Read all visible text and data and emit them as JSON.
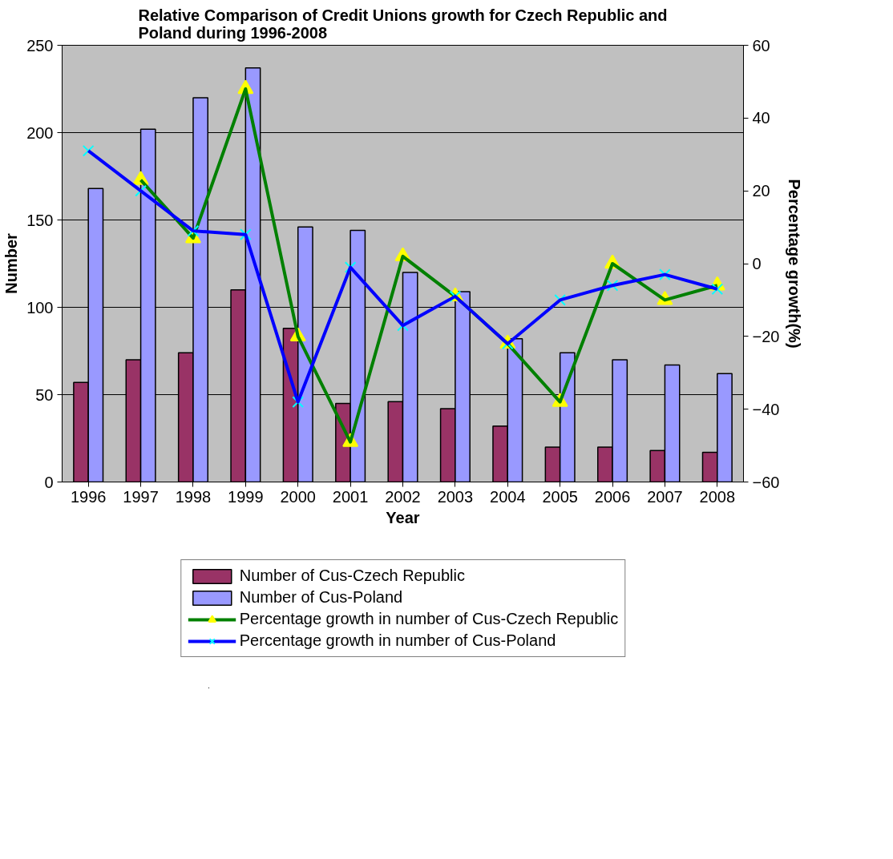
{
  "chart_data": {
    "type": "bar",
    "title": "Relative Comparison of Credit Unions growth for Czech Republic and Poland during 1996-2008",
    "xlabel": "Year",
    "ylabel": "Number",
    "y2label": "Percentage growth(%)",
    "categories": [
      "1996",
      "1997",
      "1998",
      "1999",
      "2000",
      "2001",
      "2002",
      "2003",
      "2004",
      "2005",
      "2006",
      "2007",
      "2008"
    ],
    "series": [
      {
        "name": "Number of Cus-Czech Republic",
        "color": "#993366",
        "values": [
          57,
          70,
          74,
          110,
          88,
          45,
          46,
          42,
          32,
          20,
          20,
          18,
          17
        ]
      },
      {
        "name": "Number of Cus-Poland",
        "color": "#9999ff",
        "values": [
          168,
          202,
          220,
          237,
          146,
          144,
          120,
          109,
          82,
          74,
          70,
          67,
          62
        ]
      },
      {
        "name": "Percentage growth in number of Cus-Czech Republic",
        "type": "line",
        "axis": "y2",
        "color": "#008000",
        "marker": "triangle",
        "colors": [
          "#ffff00",
          "#ffff00",
          "#ffff00",
          "#ffff00",
          "#ffff00",
          "#ffff00",
          "#ffff00",
          "#ffff00",
          "#ffff00",
          "#ffff00",
          "#ffff00",
          "#ffff00",
          "#ffff00"
        ],
        "values": [
          null,
          23,
          7,
          48,
          -20,
          -49,
          2,
          -9,
          -22,
          -38,
          0,
          -10,
          -6
        ]
      },
      {
        "name": "Percentage growth in number of Cus-Poland",
        "type": "line",
        "axis": "y2",
        "color": "#0000ff",
        "marker": "cross",
        "colors": [
          "#00ffff",
          "#00ffff",
          "#00ffff",
          "#00ffff",
          "#00ffff",
          "#00ffff",
          "#00ffff",
          "#00ffff",
          "#00ffff",
          "#00ffff",
          "#00ffff",
          "#00ffff",
          "#00ffff"
        ],
        "values": [
          31,
          20,
          9,
          8,
          -38,
          -1,
          -17,
          -9,
          -22,
          -10,
          -6,
          -3,
          -7
        ]
      }
    ],
    "ylim": [
      0,
      250
    ],
    "yticks": [
      0,
      50,
      100,
      150,
      200,
      250
    ],
    "y2lim": [
      -60,
      60
    ],
    "y2ticks": [
      -60,
      -40,
      -20,
      0,
      20,
      40,
      60
    ],
    "grid": "y",
    "legend": "bottom"
  }
}
